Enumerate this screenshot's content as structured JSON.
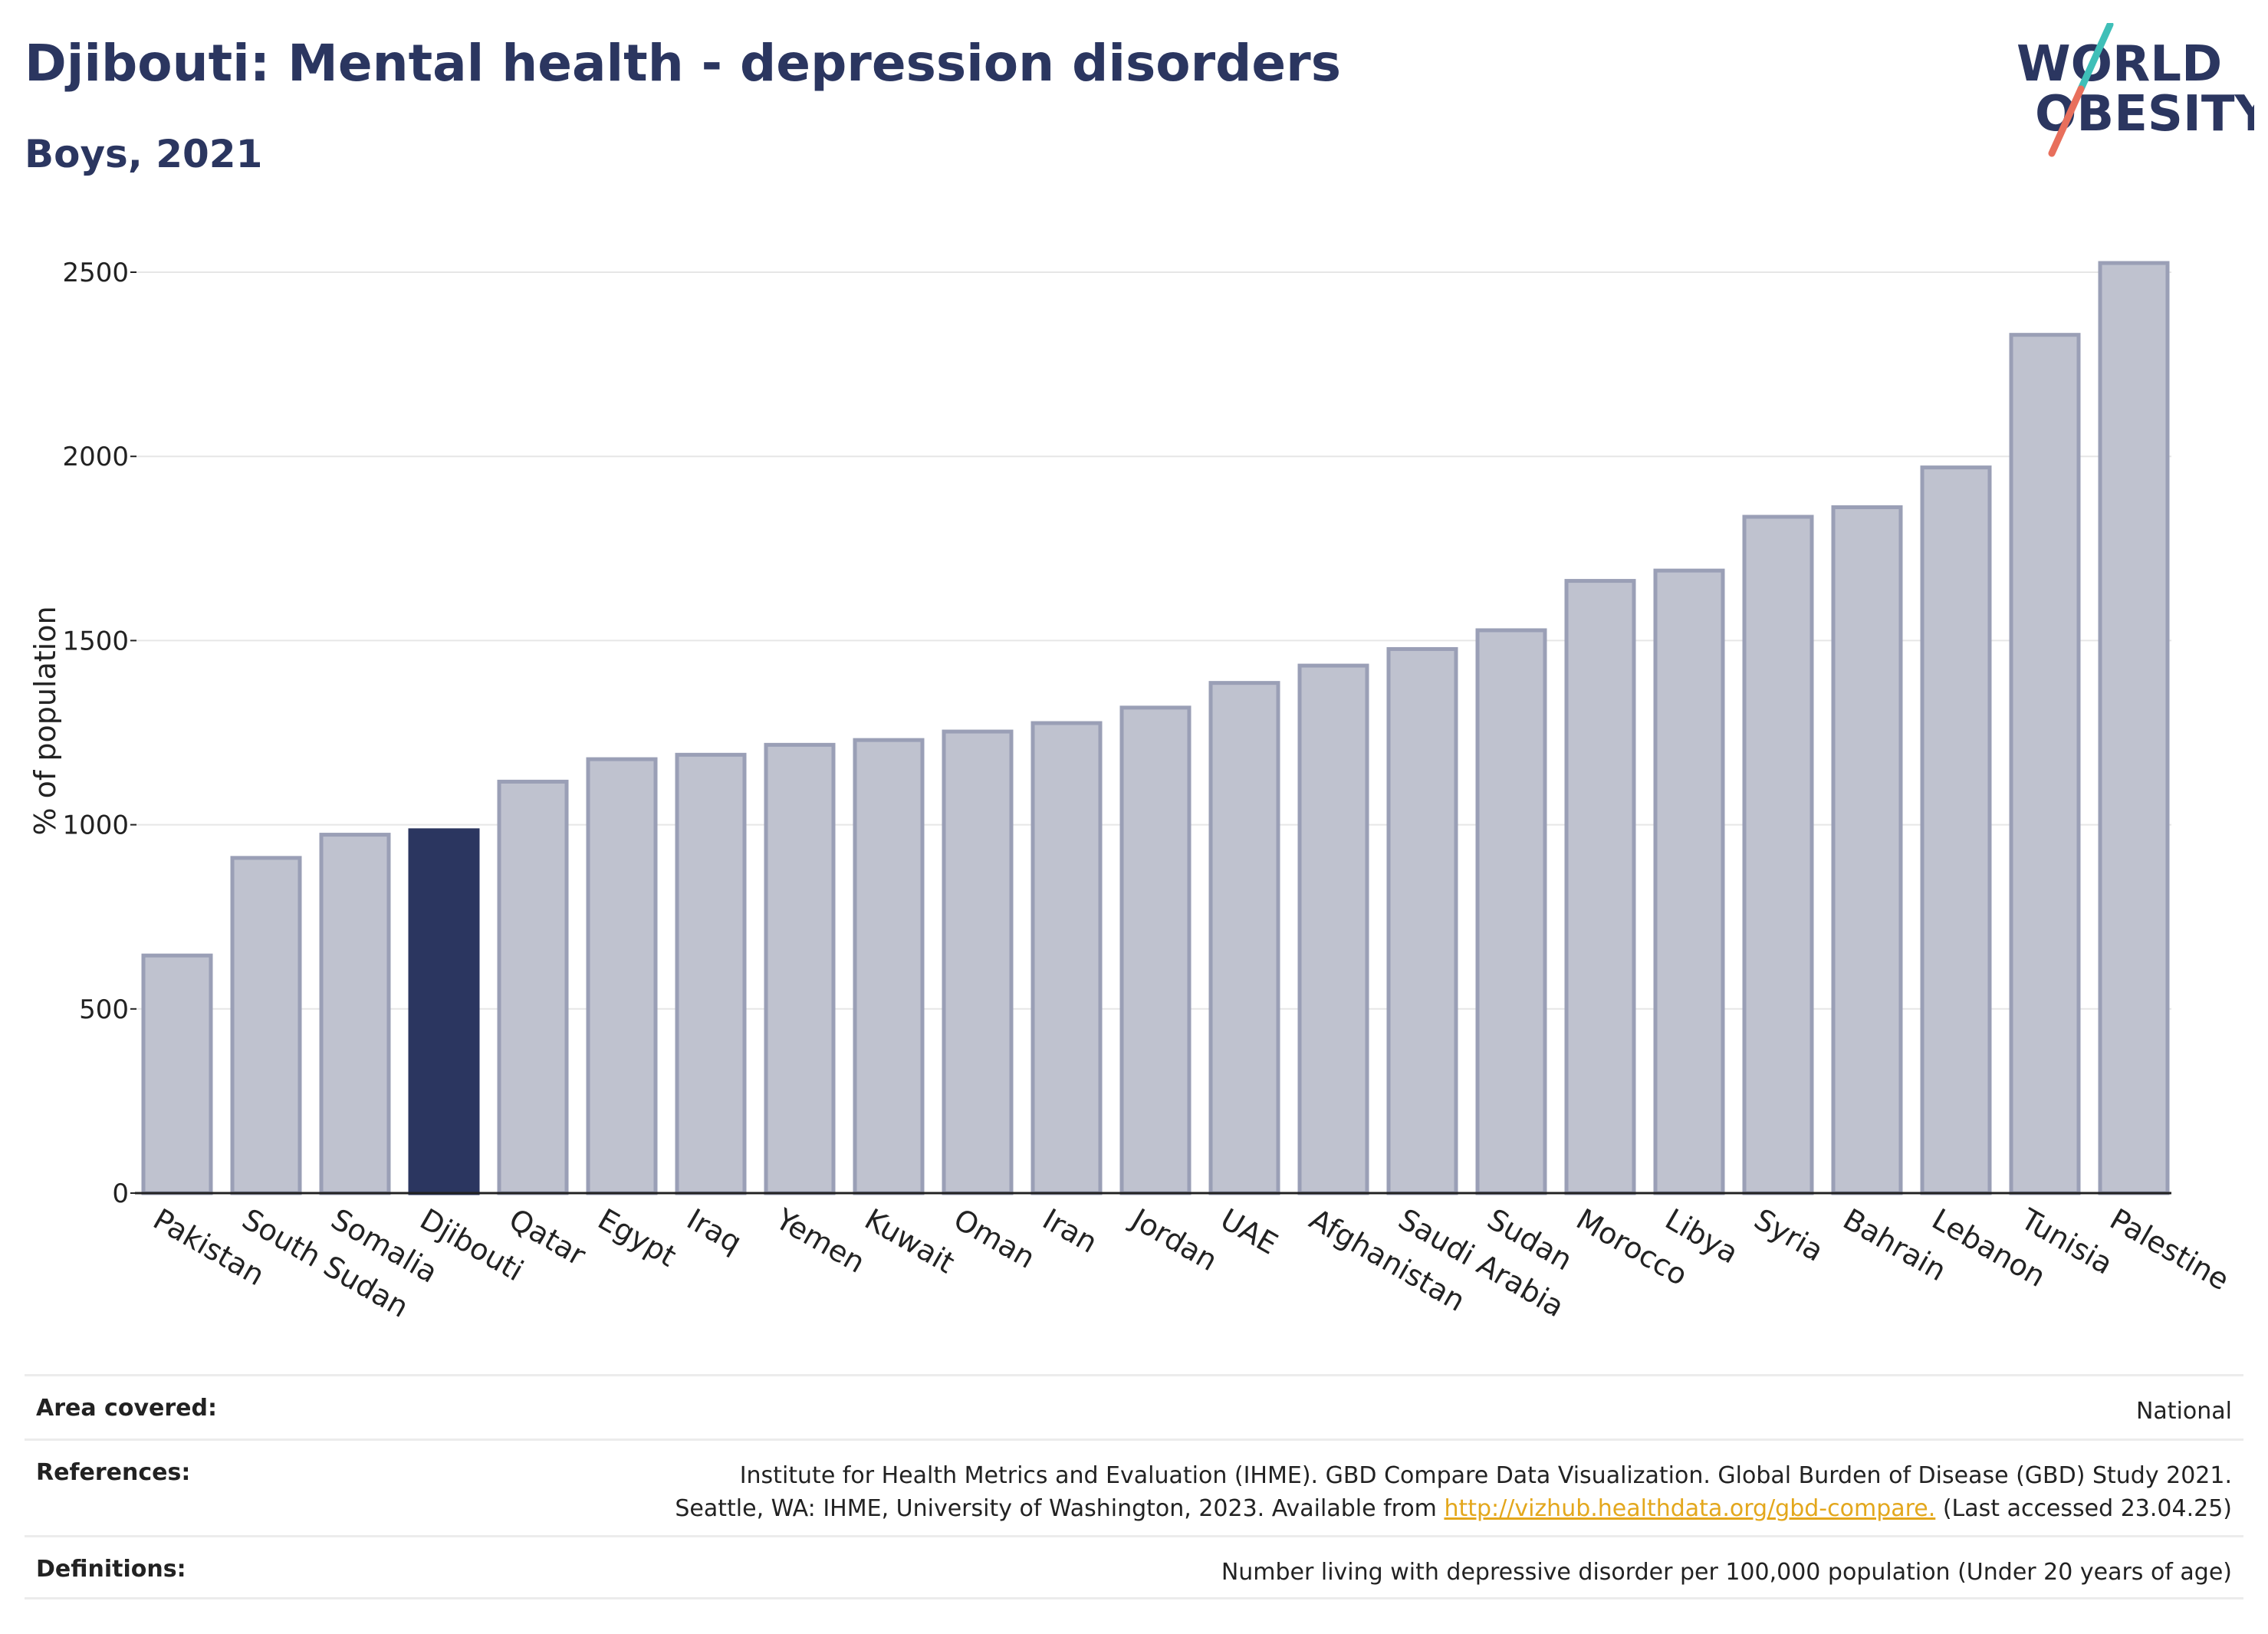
{
  "header": {
    "title": "Djibouti: Mental health - depression disorders",
    "subtitle": "Boys, 2021"
  },
  "logo": {
    "line1": "WORLD",
    "line2": "OBESITY",
    "accent_colors": [
      "#3fbfb8",
      "#e86f5c"
    ]
  },
  "chart_data": {
    "type": "bar",
    "title": "Djibouti: Mental health - depression disorders",
    "subtitle": "Boys, 2021",
    "xlabel": "",
    "ylabel": "% of population",
    "ylim": [
      0,
      2600
    ],
    "yticks": [
      0,
      500,
      1000,
      1500,
      2000,
      2500
    ],
    "grid": true,
    "categories": [
      "Pakistan",
      "South Sudan",
      "Somalia",
      "Djibouti",
      "Qatar",
      "Egypt",
      "Iraq",
      "Yemen",
      "Kuwait",
      "Oman",
      "Iran",
      "Jordan",
      "UAE",
      "Afghanistan",
      "Saudi Arabia",
      "Sudan",
      "Morocco",
      "Libya",
      "Syria",
      "Bahrain",
      "Lebanon",
      "Tunisia",
      "Palestine"
    ],
    "values": [
      645,
      910,
      973,
      985,
      1117,
      1178,
      1190,
      1217,
      1230,
      1253,
      1276,
      1318,
      1385,
      1432,
      1477,
      1528,
      1662,
      1690,
      1836,
      1862,
      1970,
      2330,
      2525
    ],
    "highlight": "Djibouti",
    "colors": {
      "bar": "#bfc2cf",
      "bar_border": "#9a9fb6",
      "highlight": "#2b3660",
      "grid": "#e6e6e6",
      "axis": "#222222"
    }
  },
  "footer": {
    "area_covered": {
      "label": "Area covered:",
      "value": "National"
    },
    "references": {
      "label": "References:",
      "line1": "Institute for Health Metrics and Evaluation (IHME). GBD Compare Data Visualization. Global Burden of Disease (GBD) Study 2021.",
      "line2_prefix": "Seattle, WA: IHME, University of Washington, 2023. Available from ",
      "link": "http://vizhub.healthdata.org/gbd-compare.",
      "line2_suffix": " (Last accessed 23.04.25)"
    },
    "definitions": {
      "label": "Definitions:",
      "value": "Number living with depressive disorder per 100,000 population (Under 20 years of age)"
    }
  }
}
